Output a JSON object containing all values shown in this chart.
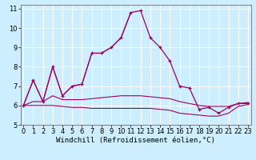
{
  "xlabel": "Windchill (Refroidissement éolien,°C)",
  "bg_color": "#cceeff",
  "grid_color": "#ffffff",
  "line_color": "#990066",
  "x_hours": [
    0,
    1,
    2,
    3,
    4,
    5,
    6,
    7,
    8,
    9,
    10,
    11,
    12,
    13,
    14,
    15,
    16,
    17,
    18,
    19,
    20,
    21,
    22,
    23
  ],
  "series_main": [
    6.0,
    7.3,
    6.2,
    8.0,
    6.5,
    7.0,
    7.1,
    8.7,
    8.7,
    9.0,
    9.5,
    10.8,
    10.9,
    9.5,
    9.0,
    8.3,
    7.0,
    6.9,
    5.8,
    5.9,
    5.6,
    5.9,
    6.1,
    6.1
  ],
  "series_zigzag_x": [
    0,
    1,
    2,
    3,
    4,
    5,
    6,
    7,
    8,
    9,
    10,
    11
  ],
  "series_zigzag_y": [
    6.0,
    7.3,
    6.2,
    8.0,
    6.5,
    7.0,
    7.1,
    8.7,
    8.7,
    9.0,
    9.5,
    10.8
  ],
  "series_upper_flat_x": [
    0,
    1,
    2,
    3,
    4,
    5,
    6,
    7,
    8,
    9,
    10,
    11,
    12,
    13,
    14,
    15,
    16,
    17,
    18,
    19,
    20,
    21,
    22,
    23
  ],
  "series_upper_flat_y": [
    6.0,
    6.2,
    6.2,
    6.5,
    6.3,
    6.3,
    6.3,
    6.35,
    6.4,
    6.45,
    6.5,
    6.5,
    6.5,
    6.45,
    6.4,
    6.35,
    6.2,
    6.1,
    6.0,
    5.95,
    5.95,
    5.95,
    6.1,
    6.15
  ],
  "series_lower_flat_x": [
    0,
    1,
    2,
    3,
    4,
    5,
    6,
    7,
    8,
    9,
    10,
    11,
    12,
    13,
    14,
    15,
    16,
    17,
    18,
    19,
    20,
    21,
    22,
    23
  ],
  "series_lower_flat_y": [
    6.0,
    6.0,
    6.0,
    6.0,
    5.95,
    5.9,
    5.9,
    5.85,
    5.85,
    5.85,
    5.85,
    5.85,
    5.85,
    5.85,
    5.8,
    5.75,
    5.6,
    5.55,
    5.5,
    5.45,
    5.45,
    5.6,
    5.95,
    6.05
  ],
  "ylim": [
    5,
    11.2
  ],
  "yticks": [
    5,
    6,
    7,
    8,
    9,
    10,
    11
  ],
  "xticks": [
    0,
    1,
    2,
    3,
    4,
    5,
    6,
    7,
    8,
    9,
    10,
    11,
    12,
    13,
    14,
    15,
    16,
    17,
    18,
    19,
    20,
    21,
    22,
    23
  ],
  "xlabel_fontsize": 6.5,
  "tick_fontsize": 6.0,
  "figsize": [
    3.2,
    2.0
  ],
  "dpi": 100
}
